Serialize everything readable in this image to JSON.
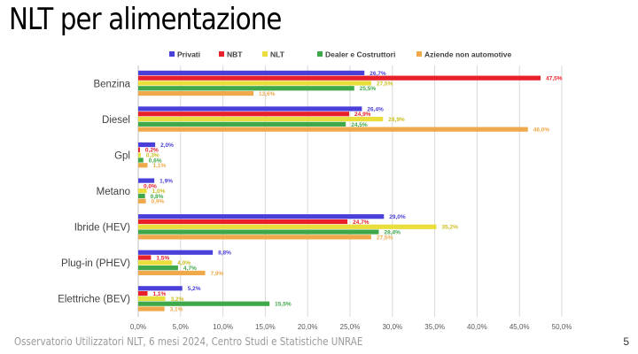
{
  "slide": {
    "title": "NLT per alimentazione",
    "footer": "Osservatorio Utilizzatori NLT, 6 mesi 2024, Centro Studi e Statistiche UNRAE",
    "page_number": "5"
  },
  "chart_data": {
    "type": "bar",
    "orientation": "horizontal",
    "title": "",
    "xlabel": "",
    "ylabel": "",
    "xlim": [
      0,
      50
    ],
    "x_ticks": [
      "0,0%",
      "5,0%",
      "10,0%",
      "15,0%",
      "20,0%",
      "25,0%",
      "30,0%",
      "35,0%",
      "40,0%",
      "45,0%",
      "50,0%"
    ],
    "grid": true,
    "legend_position": "top",
    "categories": [
      "Benzina",
      "Diesel",
      "Gpl",
      "Metano",
      "Ibride (HEV)",
      "Plug-in (PHEV)",
      "Elettriche (BEV)"
    ],
    "series": [
      {
        "name": "Privati",
        "color": "#4a3fd9",
        "values": [
          26.7,
          26.4,
          2.0,
          1.9,
          29.0,
          8.8,
          5.2
        ],
        "labels": [
          "26,7%",
          "26,4%",
          "2,0%",
          "1,9%",
          "29,0%",
          "8,8%",
          "5,2%"
        ]
      },
      {
        "name": "NBT",
        "color": "#e8202a",
        "values": [
          47.5,
          24.9,
          0.2,
          0.0,
          24.7,
          1.5,
          1.1
        ],
        "labels": [
          "47,5%",
          "24,9%",
          "0,2%",
          "0,0%",
          "24,7%",
          "1,5%",
          "1,1%"
        ]
      },
      {
        "name": "NLT",
        "color": "#e9de3c",
        "values": [
          27.5,
          28.9,
          0.3,
          1.0,
          35.2,
          4.0,
          3.2
        ],
        "labels": [
          "27,5%",
          "28,9%",
          "0,3%",
          "1,0%",
          "35,2%",
          "4,0%",
          "3,2%"
        ]
      },
      {
        "name": "Dealer e Costruttori",
        "color": "#3ea84a",
        "values": [
          25.5,
          24.5,
          0.6,
          0.8,
          28.4,
          4.7,
          15.5
        ],
        "labels": [
          "25,5%",
          "24,5%",
          "0,6%",
          "0,8%",
          "28,4%",
          "4,7%",
          "15,5%"
        ]
      },
      {
        "name": "Aziende non automotive",
        "color": "#f0a94a",
        "values": [
          13.6,
          46.0,
          1.1,
          0.9,
          27.5,
          7.9,
          3.1
        ],
        "labels": [
          "13,6%",
          "46,0%",
          "1,1%",
          "0,9%",
          "27,5%",
          "7,9%",
          "3,1%"
        ]
      }
    ]
  }
}
